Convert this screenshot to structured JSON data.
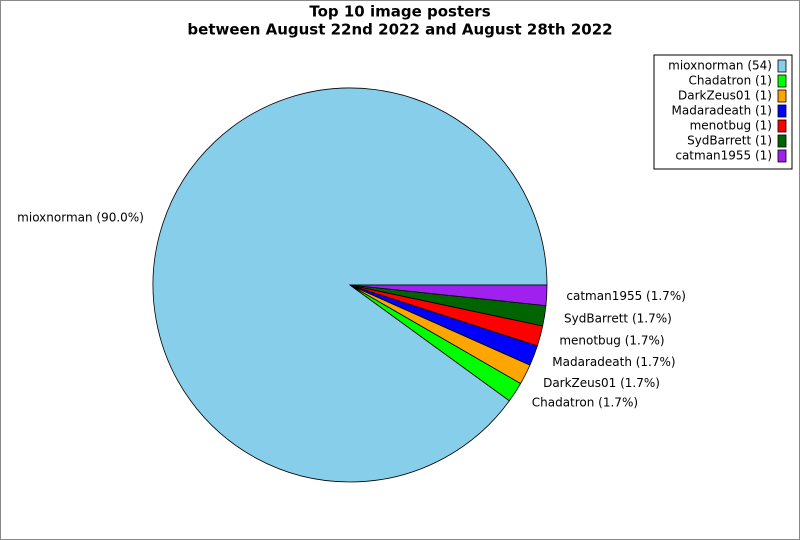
{
  "chart_data": {
    "type": "pie",
    "title": [
      "Top 10 image posters",
      "between August 22nd 2022 and August 28th 2022"
    ],
    "values": [
      54,
      1,
      1,
      1,
      1,
      1,
      1
    ],
    "legend_labels": [
      "mioxnorman (54)",
      "Chadatron (1)",
      "DarkZeus01 (1)",
      "Madaradeath (1)",
      "menotbug (1)",
      "SydBarrett (1)",
      "catman1955 (1)"
    ],
    "percentages": [
      90.0,
      1.7,
      1.7,
      1.7,
      1.7,
      1.7,
      1.7
    ],
    "percentage_labels": [
      "mioxnorman (90.0%)",
      "Chadatron (1.7%)",
      "DarkZeus01 (1.7%)",
      "Madaradeath (1.7%)",
      "menotbug (1.7%)",
      "SydBarrett (1.7%)",
      "catman1955 (1.7%)"
    ],
    "colors": [
      "#87ceeb",
      "#00ff00",
      "#ffa500",
      "#0000ff",
      "#ff0000",
      "#006400",
      "#a020f0"
    ],
    "legend_position": "upper right"
  }
}
